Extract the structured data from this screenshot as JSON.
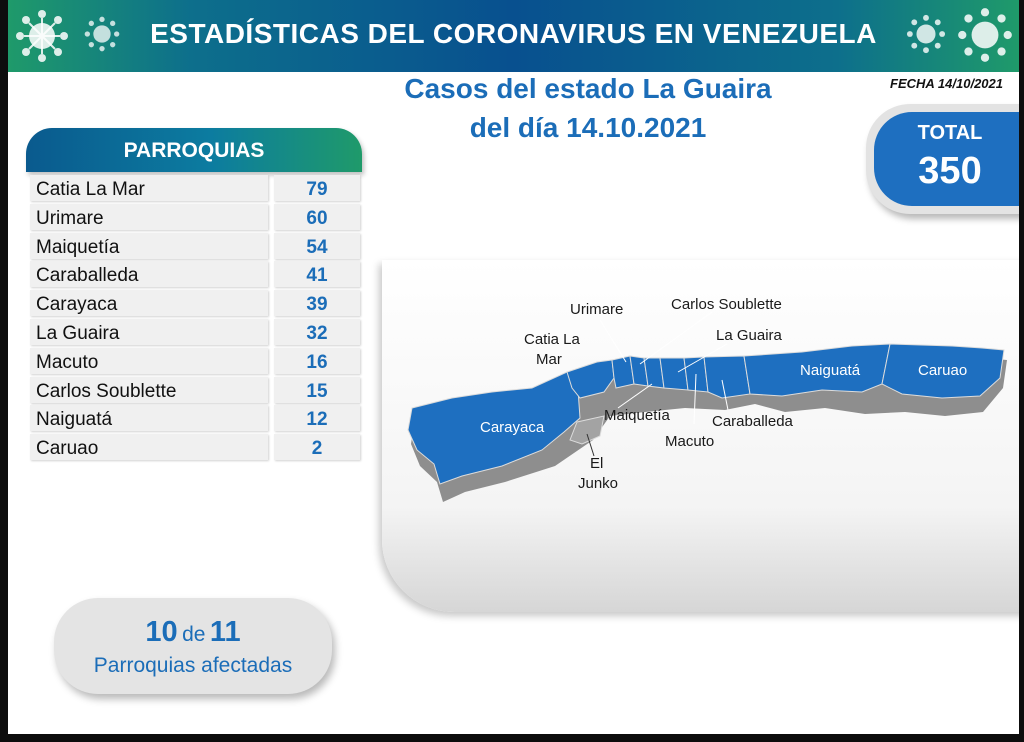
{
  "banner": {
    "title": "ESTADÍSTICAS DEL CORONAVIRUS EN VENEZUELA"
  },
  "date": "FECHA 14/10/2021",
  "title": {
    "line1": "Casos del estado La Guaira",
    "line2": "del día 14.10.2021"
  },
  "total": {
    "label": "TOTAL",
    "value": "350"
  },
  "parroquias": {
    "header": "PARROQUIAS",
    "rows": [
      {
        "name": "Catia La Mar",
        "cases": "79"
      },
      {
        "name": "Urimare",
        "cases": "60"
      },
      {
        "name": "Maiquetía",
        "cases": "54"
      },
      {
        "name": "Caraballeda",
        "cases": "41"
      },
      {
        "name": "Carayaca",
        "cases": "39"
      },
      {
        "name": "La Guaira",
        "cases": "32"
      },
      {
        "name": "Macuto",
        "cases": "16"
      },
      {
        "name": "Carlos Soublette",
        "cases": "15"
      },
      {
        "name": "Naiguatá",
        "cases": "12"
      },
      {
        "name": "Caruao",
        "cases": "2"
      }
    ]
  },
  "affected": {
    "count": "10",
    "of": "de",
    "total": "11",
    "label": "Parroquias  afectadas"
  },
  "map": {
    "affected_color": "#1e6fc0",
    "unaffected_color": "#a3a3a3",
    "labels": {
      "urimare": "Urimare",
      "carlos_soublette": "Carlos Soublette",
      "catia_1": "Catia La",
      "catia_2": "Mar",
      "la_guaira": "La Guaira",
      "naiguata": "Naiguatá",
      "caruao": "Caruao",
      "carayaca": "Carayaca",
      "maiquetia": "Maiquetía",
      "caraballeda": "Caraballeda",
      "macuto": "Macuto",
      "el_junko_1": "El",
      "el_junko_2": "Junko"
    }
  },
  "icons": {
    "virus": "virus-icon"
  }
}
